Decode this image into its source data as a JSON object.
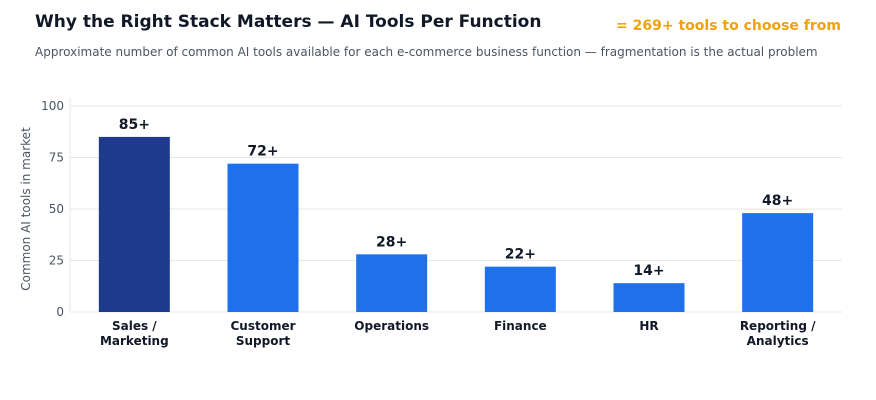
{
  "header": {
    "title": "Why the Right Stack Matters — AI Tools Per Function",
    "callout": "= 269+ tools to choose from",
    "subtitle": "Approximate number of common AI tools available for each e-commerce business function — fragmentation is the actual problem"
  },
  "chart_data": {
    "type": "bar",
    "categories": [
      [
        "Sales /",
        "Marketing"
      ],
      [
        "Customer",
        "Support"
      ],
      [
        "Operations"
      ],
      [
        "Finance"
      ],
      [
        "HR"
      ],
      [
        "Reporting /",
        "Analytics"
      ]
    ],
    "values": [
      85,
      72,
      28,
      22,
      14,
      48
    ],
    "data_labels": [
      "85+",
      "72+",
      "28+",
      "22+",
      "14+",
      "48+"
    ],
    "bar_colors": [
      "#1e3a8a",
      "#1f70eb",
      "#1f70eb",
      "#1f70eb",
      "#1f70eb",
      "#1f70eb"
    ],
    "ylabel": "Common AI tools in market",
    "ylim": [
      0,
      100
    ],
    "yticks": [
      0,
      25,
      50,
      75,
      100
    ],
    "grid": true,
    "grid_color": "#e5e7eb"
  }
}
